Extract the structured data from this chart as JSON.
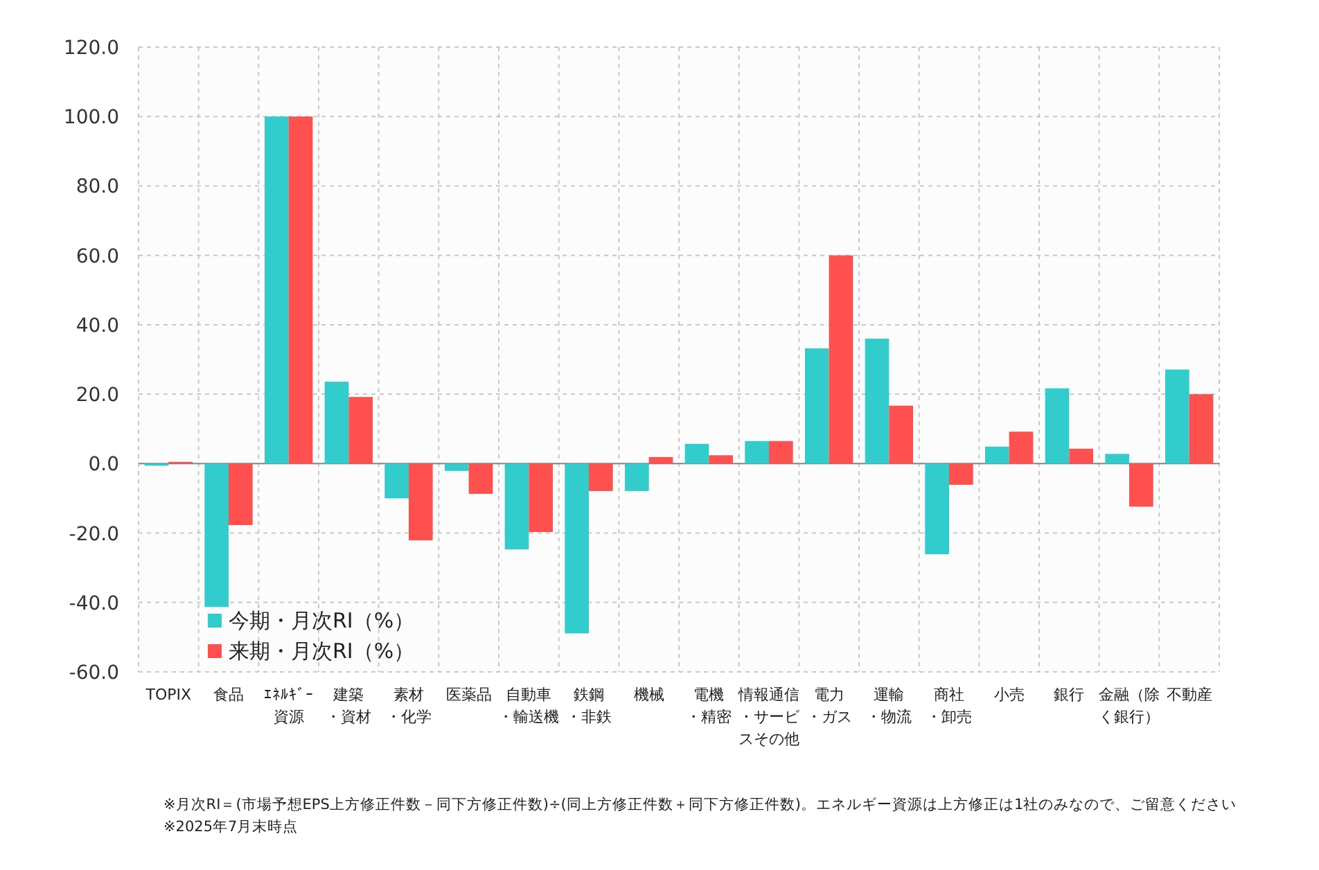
{
  "chart_data": {
    "type": "bar",
    "categories": [
      "TOPIX",
      "食品",
      "ｴﾈﾙｷﾞｰ資源",
      "建築・資材",
      "素材・化学",
      "医薬品",
      "自動車・輸送機",
      "鉄鋼・非鉄",
      "機械",
      "電機・精密",
      "情報通信・サービスその他",
      "電力・ガス",
      "運輸・物流",
      "商社・卸売",
      "小売",
      "銀行",
      "金融（除く銀行）",
      "不動産"
    ],
    "series": [
      {
        "name": "今期・月次RI（%）",
        "color": "#33cccc",
        "values": [
          -0.6,
          -41.3,
          100,
          23.6,
          -10,
          -2.1,
          -24.7,
          -48.9,
          -7.9,
          5.7,
          6.5,
          33.2,
          36,
          -26.1,
          4.9,
          21.7,
          2.8,
          27.1
        ]
      },
      {
        "name": "来期・月次RI（%）",
        "color": "#ff5050",
        "values": [
          0.5,
          -17.7,
          100,
          19.2,
          -22.1,
          -8.7,
          -19.7,
          -7.9,
          1.9,
          2.4,
          6.5,
          60,
          16.7,
          -6.1,
          9.2,
          4.3,
          -12.4,
          20
        ]
      }
    ],
    "ylim": [
      -60,
      120
    ],
    "yticks": [
      {
        "value": -60,
        "label": "-60.0"
      },
      {
        "value": -40,
        "label": "-40.0"
      },
      {
        "value": -20,
        "label": "-20.0"
      },
      {
        "value": 0,
        "label": "0.0"
      },
      {
        "value": 20,
        "label": "20.0"
      },
      {
        "value": 40,
        "label": "40.0"
      },
      {
        "value": 60,
        "label": "60.0"
      },
      {
        "value": 80,
        "label": "80.0"
      },
      {
        "value": 100,
        "label": "100.0"
      },
      {
        "value": 120,
        "label": "120.0"
      }
    ],
    "grid": true,
    "legend": "bottom left",
    "annotations": [
      "※月次RI＝(市場予想EPS上方修正件数－同下方修正件数)÷(同上方修正件数＋同下方修正件数)。エネルギー資源は上方修正は1社のみなので、ご留意ください",
      "※2025年7月末時点"
    ]
  }
}
